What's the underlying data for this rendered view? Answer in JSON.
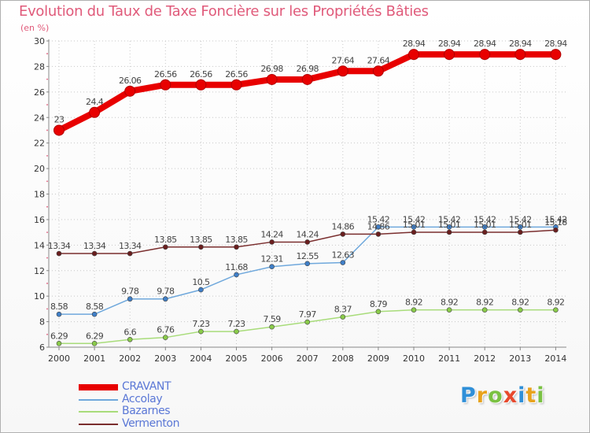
{
  "title": "Evolution du Taux de Taxe Foncière sur les Propriétés Bâties",
  "subtitle": "(en %)",
  "logo": {
    "text": "Proxiti",
    "colors": [
      "#2f8fd8",
      "#e8a21c",
      "#7ac142",
      "#e8482c",
      "#2f8fd8",
      "#e8a21c",
      "#7ac142"
    ]
  },
  "chart_data": {
    "type": "line",
    "x": [
      "2000",
      "2001",
      "2002",
      "2003",
      "2004",
      "2005",
      "2006",
      "2007",
      "2008",
      "2009",
      "2010",
      "2011",
      "2012",
      "2013",
      "2014"
    ],
    "ylim": [
      6,
      30
    ],
    "yticks": [
      "6",
      "8",
      "10",
      "12",
      "14",
      "16",
      "18",
      "20",
      "22",
      "24",
      "26",
      "28",
      "30"
    ],
    "grid": true,
    "legend_position": "bottom-left",
    "series": [
      {
        "name": "CRAVANT",
        "color": "#e80000",
        "emphasis": true,
        "values": [
          23,
          24.4,
          26.06,
          26.56,
          26.56,
          26.56,
          26.98,
          26.98,
          27.64,
          27.64,
          28.94,
          28.94,
          28.94,
          28.94,
          28.94
        ],
        "labels": [
          "23",
          "24.4",
          "26.06",
          "26.56",
          "26.56",
          "26.56",
          "26.98",
          "26.98",
          "27.64",
          "27.64",
          "28.94",
          "28.94",
          "28.94",
          "28.94",
          "28.94"
        ]
      },
      {
        "name": "Accolay",
        "color": "#6fa8dc",
        "marker": "#3f7fc8",
        "values": [
          8.58,
          8.58,
          9.78,
          9.78,
          10.5,
          11.68,
          12.31,
          12.55,
          12.63,
          15.42,
          15.42,
          15.42,
          15.42,
          15.42,
          15.42
        ],
        "labels": [
          "8.58",
          "8.58",
          "9.78",
          "9.78",
          "10.5",
          "11.68",
          "12.31",
          "12.55",
          "12.63",
          "15.42",
          "15.42",
          "15.42",
          "15.42",
          "15.42",
          "15.42"
        ]
      },
      {
        "name": "Bazarnes",
        "color": "#a8dc7a",
        "marker": "#8acb4a",
        "values": [
          6.29,
          6.29,
          6.6,
          6.76,
          7.23,
          7.23,
          7.59,
          7.97,
          8.37,
          8.79,
          8.92,
          8.92,
          8.92,
          8.92,
          8.92
        ],
        "labels": [
          "6.29",
          "6.29",
          "6.6",
          "6.76",
          "7.23",
          "7.23",
          "7.59",
          "7.97",
          "8.37",
          "8.79",
          "8.92",
          "8.92",
          "8.92",
          "8.92",
          "8.92"
        ]
      },
      {
        "name": "Vermenton",
        "color": "#7a2e2e",
        "marker": "#6a1e1e",
        "values": [
          13.34,
          13.34,
          13.34,
          13.85,
          13.85,
          13.85,
          14.24,
          14.24,
          14.86,
          14.86,
          15.01,
          15.01,
          15.01,
          15.01,
          15.18
        ],
        "labels": [
          "13.34",
          "13.34",
          "13.34",
          "13.85",
          "13.85",
          "13.85",
          "14.24",
          "14.24",
          "14.86",
          "14.86",
          "15.01",
          "15.01",
          "15.01",
          "15.01",
          "15.18"
        ]
      }
    ]
  }
}
